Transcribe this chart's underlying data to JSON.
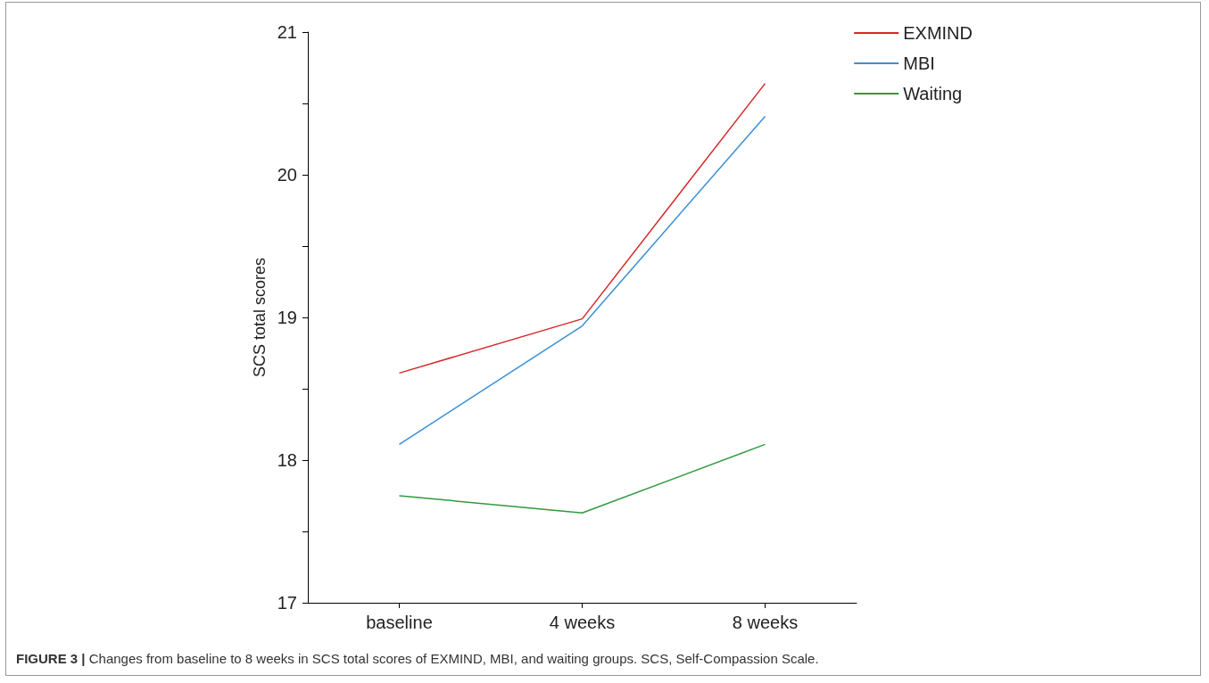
{
  "chart_data": {
    "type": "line",
    "ylabel": "SCS total scores",
    "categories": [
      "baseline",
      "4 weeks",
      "8 weeks"
    ],
    "series": [
      {
        "name": "EXMIND",
        "color": "#d62728",
        "values": [
          18.61,
          18.99,
          20.64
        ]
      },
      {
        "name": "MBI",
        "color": "#3a8fd6",
        "values": [
          18.11,
          18.94,
          20.41
        ]
      },
      {
        "name": "Waiting",
        "color": "#2e9a3e",
        "values": [
          17.75,
          17.63,
          18.11
        ]
      }
    ],
    "ylim": [
      17,
      21
    ],
    "yticks": [
      17,
      {
        "value": 17.5,
        "label": null
      },
      18,
      {
        "value": 18.5,
        "label": null
      },
      19,
      {
        "value": 19.5,
        "label": null
      },
      20,
      {
        "value": 20.5,
        "label": null
      },
      21
    ],
    "grid": false,
    "legend": "top right",
    "marker": "none",
    "line_style": "solid",
    "annotations": [
      "FIGURE 3 | Changes from baseline to 8 weeks in SCS total scores of EXMIND, MBI, and waiting groups. SCS, Self-Compassion Scale."
    ]
  }
}
